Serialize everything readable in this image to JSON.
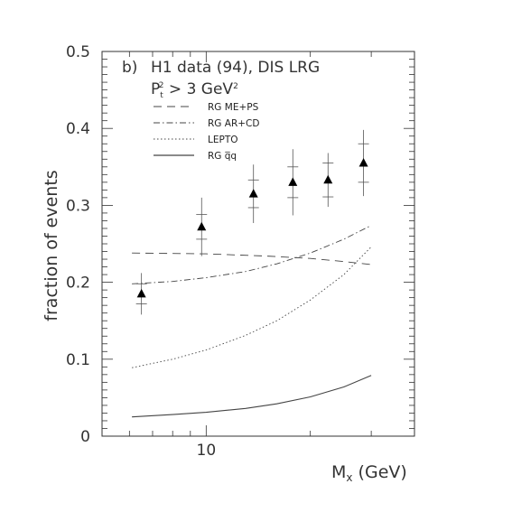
{
  "chart_data": {
    "type": "scatter",
    "panel_label": "b)",
    "title": "H1 data (94), DIS LRG",
    "cut_label": {
      "text": "P",
      "sub": "t",
      "sup": "2",
      "rest": " > 3 GeV",
      "rest_sup": "2"
    },
    "xlabel": {
      "main": "M",
      "sub": "x",
      "unit": " (GeV)"
    },
    "ylabel": "fraction of events",
    "xscale": "log",
    "xlim": [
      5,
      40
    ],
    "ylim": [
      0,
      0.5
    ],
    "xticks": [
      {
        "value": 10,
        "label": "10"
      }
    ],
    "yticks": [
      {
        "value": 0,
        "label": "0"
      },
      {
        "value": 0.1,
        "label": "0.1"
      },
      {
        "value": 0.2,
        "label": "0.2"
      },
      {
        "value": 0.3,
        "label": "0.3"
      },
      {
        "value": 0.4,
        "label": "0.4"
      },
      {
        "value": 0.5,
        "label": "0.5"
      }
    ],
    "data_points": [
      {
        "x": 6.5,
        "y": 0.185,
        "err_stat": 0.013,
        "err_tot": 0.027
      },
      {
        "x": 9.7,
        "y": 0.272,
        "err_stat": 0.016,
        "err_tot": 0.038
      },
      {
        "x": 13.7,
        "y": 0.315,
        "err_stat": 0.018,
        "err_tot": 0.038
      },
      {
        "x": 17.8,
        "y": 0.33,
        "err_stat": 0.02,
        "err_tot": 0.043
      },
      {
        "x": 22.5,
        "y": 0.333,
        "err_stat": 0.022,
        "err_tot": 0.035
      },
      {
        "x": 28.5,
        "y": 0.355,
        "err_stat": 0.025,
        "err_tot": 0.043
      }
    ],
    "series": [
      {
        "name": "RG ME+PS",
        "style": "dashed",
        "x": [
          6.1,
          10,
          15,
          20,
          25,
          30
        ],
        "y": [
          0.238,
          0.237,
          0.234,
          0.231,
          0.227,
          0.223
        ]
      },
      {
        "name": "RG AR+CD",
        "style": "dashdot",
        "x": [
          6.1,
          8,
          10,
          13,
          16,
          20,
          25,
          30
        ],
        "y": [
          0.198,
          0.201,
          0.206,
          0.214,
          0.224,
          0.238,
          0.256,
          0.274
        ]
      },
      {
        "name": "LEPTO",
        "style": "dotted",
        "x": [
          6.1,
          8,
          10,
          13,
          16,
          20,
          25,
          30
        ],
        "y": [
          0.089,
          0.1,
          0.112,
          0.131,
          0.15,
          0.177,
          0.21,
          0.246
        ]
      },
      {
        "name": "RG q̅q",
        "style": "solid",
        "x": [
          6.1,
          8,
          10,
          13,
          16,
          20,
          25,
          30
        ],
        "y": [
          0.025,
          0.028,
          0.031,
          0.036,
          0.042,
          0.051,
          0.064,
          0.079
        ]
      }
    ],
    "colors": {
      "axis": "#333333",
      "data": "#000000",
      "curves": "#444444"
    }
  }
}
